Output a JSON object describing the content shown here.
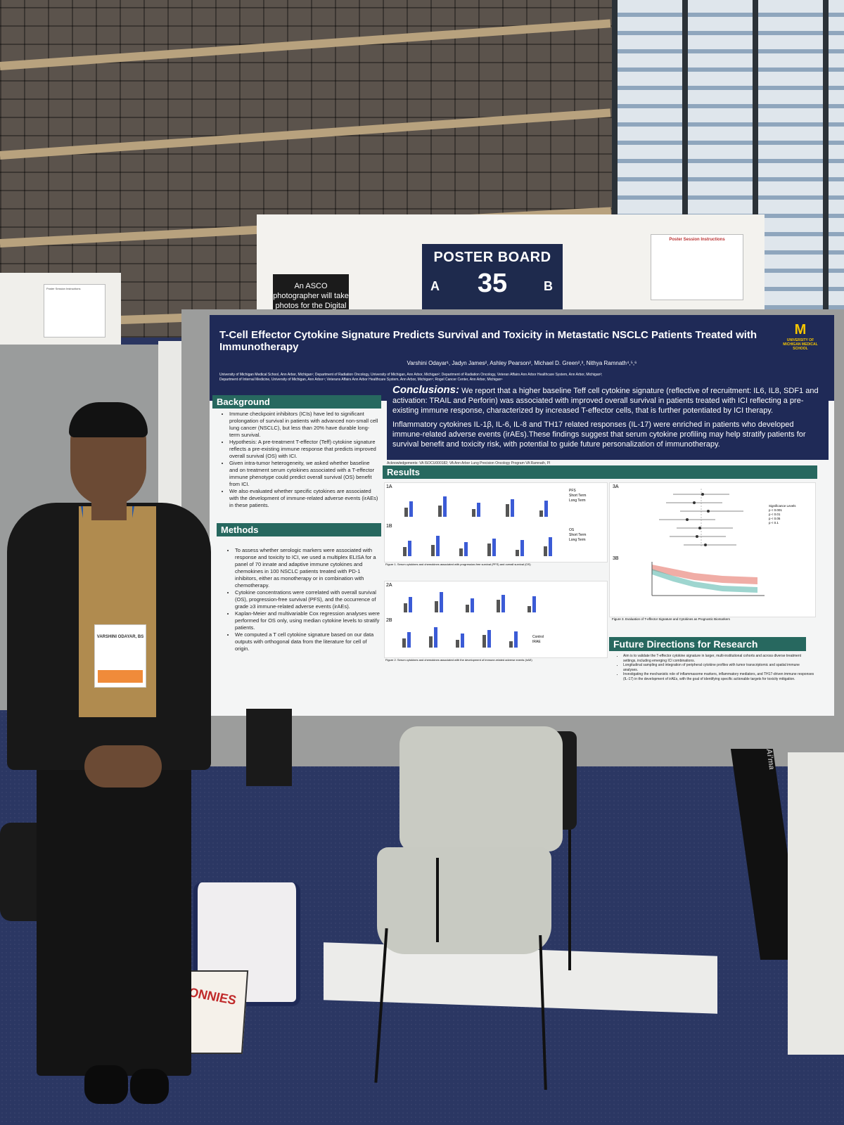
{
  "scene": {
    "asco_sign": "An ASCO photographer will take photos for the Digital Program.",
    "poster_board": {
      "title": "POSTER BOARD",
      "number": "35",
      "side_a": "A",
      "side_b": "B"
    },
    "instructions_title": "Poster Session Instructions",
    "badge_text": "VARSHINI ODAYAR, BS",
    "pizza_box_text": "JONNIES",
    "pillar_text": "Ai'ma"
  },
  "poster": {
    "title": "T-Cell Effector Cytokine Signature Predicts Survival and Toxicity in Metastatic NSCLC Patients Treated with Immunotherapy",
    "authors": "Varshini Odayar¹, Jadyn James², Ashley Pearson², Michael D. Green²,³, Nithya Ramnath⁴,⁵,⁶",
    "affiliations": "University of Michigan Medical School, Ann Arbor, Michigan¹; Department of Radiation Oncology, University of Michigan, Ann Arbor, Michigan²; Department of Radiation Oncology, Veteran Affairs Ann Arbor Healthcare System, Ann Arbor, Michigan³; Department of Internal Medicine, University of Michigan, Ann Arbor⁴; Veterans Affairs Ann Arbor Healthcare System, Ann Arbor, Michigan⁵; Rogel Cancer Center, Ann Arbor, Michigan⁶",
    "logo": "UNIVERSITY OF MICHIGAN MEDICAL SCHOOL",
    "background_heading": "Background",
    "background_items": [
      "Immune checkpoint inhibitors (ICIs) have led to significant prolongation of survival in patients with advanced non-small cell lung cancer (NSCLC), but less than 20% have durable long-term survival.",
      "Hypothesis: A pre-treatment T-effector (Teff) cytokine signature reflects a pre-existing immune response that predicts improved overall survival (OS) with ICI.",
      "Given intra-tumor heterogeneity, we asked whether baseline and on treatment serum cytokines associated with a T-effector immune phenotype could predict overall survival (OS) benefit from ICI.",
      "We also evaluated whether specific cytokines are associated with the development of immune-related adverse events (irAEs) in these patients."
    ],
    "methods_heading": "Methods",
    "methods_items": [
      "To assess whether serologic markers were associated with response and toxicity to ICI, we used a multiplex ELISA for a panel of 70 innate and adaptive immune cytokines and chemokines in 100 NSCLC patients treated with PD-1 inhibitors, either as monotherapy or in combination with chemotherapy.",
      "Cytokine concentrations were correlated with overall survival (OS), progression-free survival (PFS), and the occurrence of grade ≥3 immune-related adverse events (irAEs).",
      "Kaplan-Meier and multivariable Cox regression analyses were performed for OS only, using median cytokine levels to stratify patients.",
      "We computed a T cell cytokine signature based on our data outputs with orthogonal data from the literature for cell of origin."
    ],
    "conclusions_label": "Conclusions:",
    "conclusions_text": "We report that a higher baseline Teff cell cytokine signature (reflective of recruitment: IL6, IL8, SDF1 and activation: TRAIL and Perforin) was associated with improved overall survival in patients treated with ICI reflecting a pre-existing immune response, characterized by increased T-effector cells, that is further potentiated by ICI therapy.",
    "conclusions_text2": "Inflammatory cytokines IL-1β, IL-6, IL-8 and TH17 related responses (IL-17) were enriched in patients who developed immune-related adverse events (irAEs).These findings suggest that serum cytokine profiling may help stratify patients for survival benefit and toxicity risk, with potential to guide future personalization of immunotherapy.",
    "acknowledgements": "Acknowledgements: VA ISOCU000182; VA Ann Arbor Lung Precision Oncology Program VA Ramnath, PI",
    "results_heading": "Results",
    "panel_labels": [
      "1A",
      "1B",
      "2A",
      "2B",
      "3A",
      "3B"
    ],
    "legend_1a": [
      "PFS",
      "Short Term",
      "Long Term"
    ],
    "legend_1b": [
      "OS",
      "Short Term",
      "Long Term"
    ],
    "legend_2b": [
      "Control",
      "IRAE"
    ],
    "sig_levels": [
      "Significance Levels",
      "p < 0.001",
      "p < 0.01",
      "p < 0.05",
      "p < 0.1"
    ],
    "figure1_caption": "Figure 1. Serum cytokines and chemokines associated with progression-free survival (PFS) and overall survival (OS)",
    "figure2_caption": "Figure 2. Serum cytokines and chemokines associated with the development of immune-related adverse events (irAE)",
    "figure3_caption": "Figure 3. Evaluation of T-effector Signature and Cytokines as Prognostic Biomarkers",
    "future_heading": "Future Directions for Research",
    "future_items": [
      "Aim is to validate the T-effector cytokine signature in larger, multi-institutional cohorts and across diverse treatment settings, including emerging ICI combinations.",
      "Longitudinal sampling and integration of peripheral cytokine profiles with tumor transcriptomic and spatial immune analyses.",
      "Investigating the mechanistic role of inflammasome markers, inflammatory mediators, and TH17-driven immune responses (IL-17) in the development of irAEs, with the goal of identifying specific actionable targets for toxicity mitigation."
    ]
  },
  "colors": {
    "navy": "#1f2a57",
    "teal": "#27685f",
    "blue_bar": "#3b5bd6",
    "gray_bar": "#555555",
    "km_red": "#e46a5c",
    "km_teal": "#4fb3a8"
  }
}
